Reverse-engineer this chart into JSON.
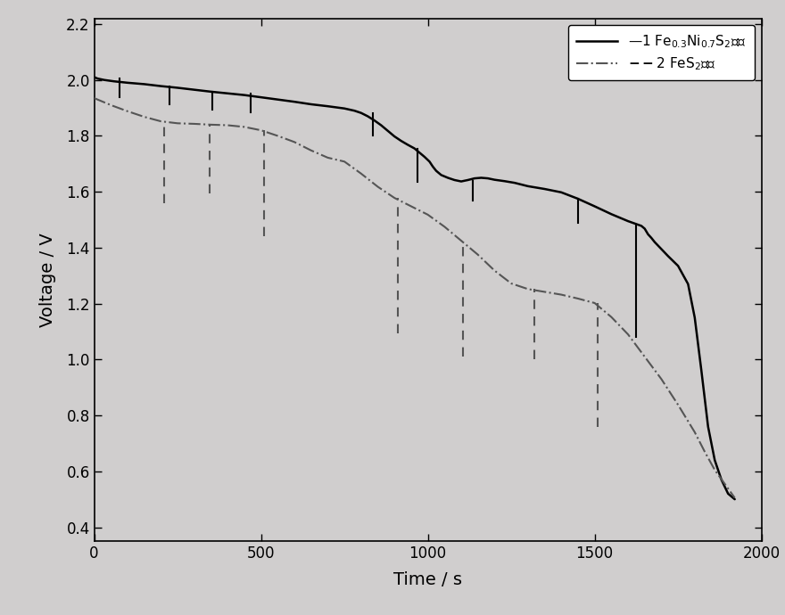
{
  "xlabel": "Time / s",
  "ylabel": "Voltage / V",
  "xlim": [
    0,
    2000
  ],
  "ylim": [
    0.35,
    2.22
  ],
  "xticks": [
    0,
    500,
    1000,
    1500,
    2000
  ],
  "yticks": [
    0.4,
    0.6,
    0.8,
    1.0,
    1.2,
    1.4,
    1.6,
    1.8,
    2.0,
    2.2
  ],
  "bg_color": "#d0cece",
  "line1_color": "#000000",
  "line2_color": "#555555",
  "curve1_x": [
    0,
    10,
    30,
    60,
    100,
    150,
    200,
    250,
    300,
    350,
    400,
    450,
    500,
    550,
    600,
    650,
    700,
    750,
    780,
    800,
    820,
    840,
    860,
    880,
    900,
    920,
    940,
    960,
    975,
    990,
    1005,
    1015,
    1025,
    1040,
    1060,
    1080,
    1100,
    1120,
    1140,
    1160,
    1180,
    1200,
    1230,
    1260,
    1300,
    1350,
    1400,
    1450,
    1500,
    1550,
    1600,
    1640,
    1650,
    1655,
    1660,
    1670,
    1680,
    1700,
    1720,
    1750,
    1780,
    1800,
    1820,
    1840,
    1860,
    1880,
    1900,
    1920
  ],
  "curve1_y": [
    2.01,
    2.005,
    2.0,
    1.995,
    1.99,
    1.985,
    1.978,
    1.972,
    1.965,
    1.958,
    1.952,
    1.946,
    1.938,
    1.93,
    1.922,
    1.913,
    1.906,
    1.898,
    1.89,
    1.882,
    1.87,
    1.855,
    1.838,
    1.818,
    1.798,
    1.782,
    1.768,
    1.755,
    1.74,
    1.725,
    1.708,
    1.69,
    1.675,
    1.66,
    1.65,
    1.642,
    1.637,
    1.642,
    1.648,
    1.65,
    1.648,
    1.643,
    1.638,
    1.632,
    1.62,
    1.61,
    1.598,
    1.575,
    1.548,
    1.52,
    1.495,
    1.478,
    1.468,
    1.458,
    1.448,
    1.435,
    1.42,
    1.395,
    1.37,
    1.335,
    1.27,
    1.15,
    0.96,
    0.76,
    0.64,
    0.57,
    0.52,
    0.5
  ],
  "curve2_x": [
    0,
    20,
    50,
    100,
    150,
    200,
    250,
    300,
    350,
    400,
    450,
    500,
    550,
    600,
    650,
    700,
    750,
    800,
    850,
    900,
    950,
    1000,
    1050,
    1100,
    1150,
    1200,
    1250,
    1300,
    1350,
    1400,
    1450,
    1500,
    1550,
    1600,
    1650,
    1700,
    1750,
    1800,
    1830,
    1860,
    1890,
    1920
  ],
  "curve2_y": [
    1.935,
    1.925,
    1.91,
    1.888,
    1.868,
    1.852,
    1.845,
    1.843,
    1.84,
    1.838,
    1.832,
    1.82,
    1.8,
    1.778,
    1.748,
    1.722,
    1.708,
    1.665,
    1.618,
    1.578,
    1.548,
    1.518,
    1.475,
    1.425,
    1.375,
    1.318,
    1.272,
    1.252,
    1.242,
    1.232,
    1.218,
    1.202,
    1.152,
    1.09,
    1.01,
    0.93,
    0.838,
    0.74,
    0.67,
    0.605,
    0.555,
    0.505
  ],
  "pulse1_times": [
    75,
    225,
    355,
    470,
    835,
    970,
    1135,
    1450,
    1625
  ],
  "pulse1_top": [
    2.005,
    1.978,
    1.958,
    1.952,
    1.882,
    1.755,
    1.64,
    1.575,
    1.478
  ],
  "pulse1_bot": [
    1.94,
    1.912,
    1.893,
    1.885,
    1.8,
    1.635,
    1.57,
    1.49,
    1.08
  ],
  "pulse2_times": [
    210,
    345,
    510,
    910,
    1105,
    1320,
    1510
  ],
  "pulse2_top": [
    1.852,
    1.843,
    1.82,
    1.578,
    1.425,
    1.252,
    1.202
  ],
  "pulse2_bot": [
    1.558,
    1.595,
    1.44,
    1.095,
    1.01,
    1.0,
    0.758
  ]
}
